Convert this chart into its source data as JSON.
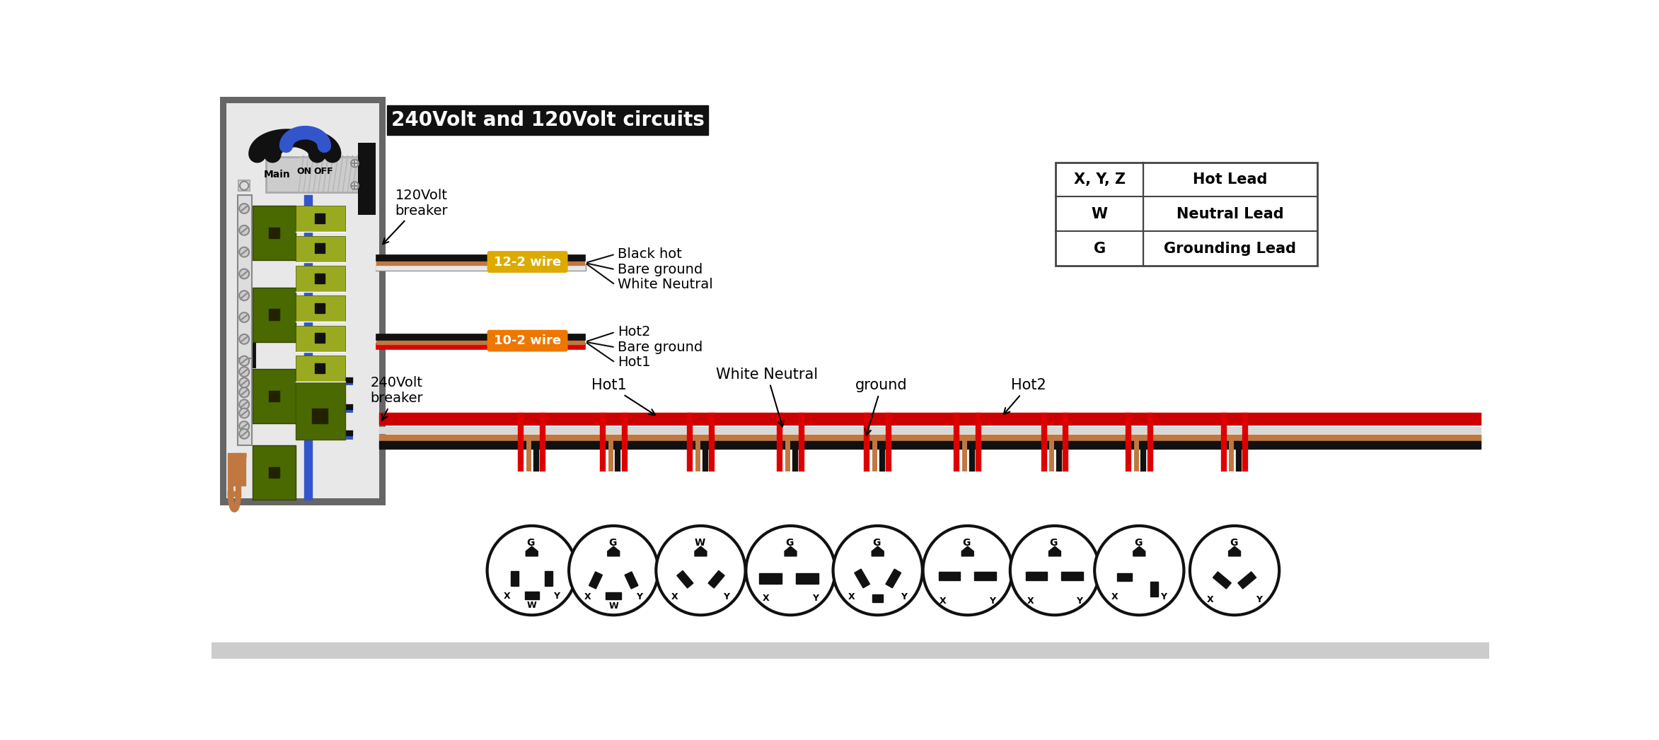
{
  "bg_color": "#ffffff",
  "title_text": "240Volt and 120Volt circuits",
  "title_bg": "#111111",
  "title_fg": "#ffffff",
  "wire_red": "#dd0000",
  "wire_black": "#111111",
  "wire_white": "#e8e8e8",
  "wire_copper": "#c07840",
  "wire_blue": "#3355cc",
  "wire_orange": "#ee8800",
  "breaker_green_dark": "#4a6600",
  "breaker_green_light": "#8aaa00",
  "panel_outer": "#888888",
  "panel_bg": "#e0e0e0",
  "panel_inner_bg": "#f0f0f0",
  "label_font_size": 15,
  "table_entries": [
    [
      "X, Y, Z",
      "Hot Lead"
    ],
    [
      "W",
      "Neutral Lead"
    ],
    [
      "G",
      "Grounding Lead"
    ]
  ]
}
